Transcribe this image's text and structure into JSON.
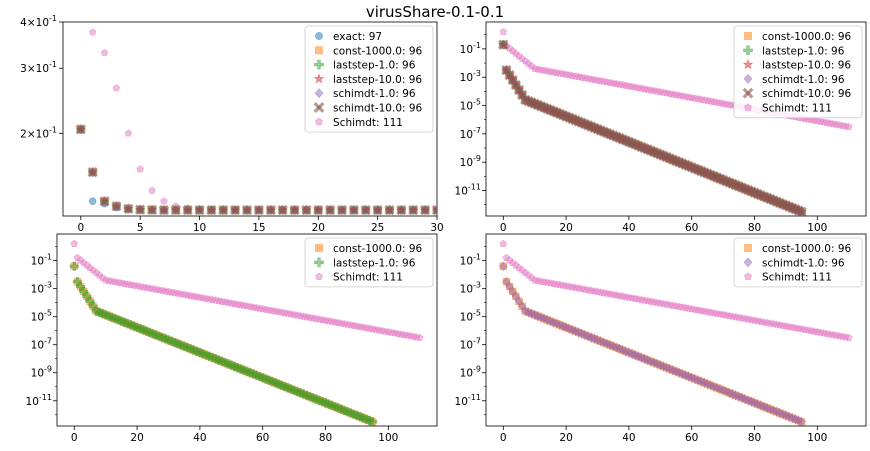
{
  "figure": {
    "title": "virusShare-0.1-0.1"
  },
  "colors": {
    "exact": "#1f77b4",
    "const-1000.0": "#ff7f0e",
    "laststep-1.0": "#2ca02c",
    "laststep-10.0": "#d62728",
    "schimdt-1.0": "#9467bd",
    "schimdt-10.0": "#8c564b",
    "Schimdt": "#e377c2"
  },
  "chart_data": [
    {
      "type": "scatter",
      "title": "",
      "xlabel": "",
      "ylabel": "",
      "yscale": "log",
      "xlim": [
        -1.5,
        30
      ],
      "ylim": [
        0.1195,
        0.4
      ],
      "xticks": [
        0,
        5,
        10,
        15,
        20,
        25,
        30
      ],
      "yticks": [
        {
          "value": 0.2,
          "label": "2 × 10^-1"
        },
        {
          "value": 0.3,
          "label": "3 × 10^-1"
        },
        {
          "value": 0.4,
          "label": "4 × 10^-1"
        }
      ],
      "legend_position": "top-right",
      "legend": [
        "exact: 97",
        "const-1000.0: 96",
        "laststep-1.0: 96",
        "laststep-10.0: 96",
        "schimdt-1.0: 96",
        "schimdt-10.0: 96",
        "Schimdt: 111"
      ],
      "series": [
        {
          "name": "exact: 97",
          "key": "exact",
          "marker": "circle",
          "points": [
            [
              0,
              0.205
            ],
            [
              1,
              0.131
            ],
            [
              2,
              0.129
            ],
            [
              3,
              0.126
            ],
            [
              4,
              0.1245
            ],
            [
              5,
              0.1243
            ],
            [
              6,
              0.1241
            ],
            [
              7,
              0.124
            ],
            [
              8,
              0.124
            ],
            [
              9,
              0.124
            ],
            [
              10,
              0.124
            ],
            [
              11,
              0.124
            ],
            [
              12,
              0.124
            ],
            [
              13,
              0.124
            ],
            [
              14,
              0.124
            ],
            [
              15,
              0.124
            ],
            [
              16,
              0.124
            ],
            [
              17,
              0.124
            ],
            [
              18,
              0.124
            ],
            [
              19,
              0.124
            ],
            [
              20,
              0.124
            ],
            [
              21,
              0.124
            ],
            [
              22,
              0.124
            ],
            [
              23,
              0.124
            ],
            [
              24,
              0.124
            ],
            [
              25,
              0.124
            ],
            [
              26,
              0.124
            ],
            [
              27,
              0.124
            ],
            [
              28,
              0.124
            ],
            [
              29,
              0.124
            ],
            [
              30,
              0.124
            ]
          ]
        },
        {
          "name": "const-1000.0: 96",
          "key": "const-1000.0",
          "marker": "square",
          "points": [
            [
              0,
              0.205
            ],
            [
              1,
              0.157
            ],
            [
              2,
              0.131
            ],
            [
              3,
              0.127
            ],
            [
              4,
              0.125
            ],
            [
              5,
              0.1243
            ],
            [
              6,
              0.1241
            ],
            [
              7,
              0.124
            ],
            [
              8,
              0.124
            ],
            [
              9,
              0.124
            ],
            [
              10,
              0.124
            ],
            [
              11,
              0.124
            ],
            [
              12,
              0.124
            ],
            [
              13,
              0.124
            ],
            [
              14,
              0.124
            ],
            [
              15,
              0.124
            ],
            [
              16,
              0.124
            ],
            [
              17,
              0.124
            ],
            [
              18,
              0.124
            ],
            [
              19,
              0.124
            ],
            [
              20,
              0.124
            ],
            [
              21,
              0.124
            ],
            [
              22,
              0.124
            ],
            [
              23,
              0.124
            ],
            [
              24,
              0.124
            ],
            [
              25,
              0.124
            ],
            [
              26,
              0.124
            ],
            [
              27,
              0.124
            ],
            [
              28,
              0.124
            ],
            [
              29,
              0.124
            ],
            [
              30,
              0.124
            ]
          ]
        },
        {
          "name": "Schimdt: 111",
          "key": "Schimdt",
          "marker": "pentagon",
          "points": [
            [
              0,
              0.205
            ],
            [
              1,
              0.375
            ],
            [
              2,
              0.33
            ],
            [
              3,
              0.265
            ],
            [
              4,
              0.2
            ],
            [
              5,
              0.16
            ],
            [
              6,
              0.14
            ],
            [
              7,
              0.131
            ],
            [
              8,
              0.127
            ],
            [
              9,
              0.1255
            ],
            [
              10,
              0.1248
            ],
            [
              11,
              0.1244
            ],
            [
              12,
              0.1242
            ],
            [
              13,
              0.1241
            ],
            [
              14,
              0.124
            ],
            [
              15,
              0.124
            ],
            [
              16,
              0.124
            ],
            [
              17,
              0.124
            ],
            [
              18,
              0.124
            ],
            [
              19,
              0.124
            ],
            [
              20,
              0.124
            ],
            [
              21,
              0.124
            ],
            [
              22,
              0.124
            ],
            [
              23,
              0.124
            ],
            [
              24,
              0.124
            ],
            [
              25,
              0.124
            ],
            [
              26,
              0.124
            ],
            [
              27,
              0.124
            ],
            [
              28,
              0.124
            ],
            [
              29,
              0.124
            ],
            [
              30,
              0.124
            ]
          ]
        }
      ],
      "overlay_series_same_as_const": [
        "laststep-1.0",
        "laststep-10.0",
        "schimdt-1.0",
        "schimdt-10.0"
      ]
    },
    {
      "type": "scatter",
      "title": "",
      "xlabel": "",
      "ylabel": "",
      "yscale": "log",
      "xlim": [
        -5.5,
        115.5
      ],
      "ylim_exp": [
        -12.8,
        0.9
      ],
      "xticks": [
        0,
        20,
        40,
        60,
        80,
        100
      ],
      "yticks_exp": [
        -11,
        -9,
        -7,
        -5,
        -3,
        -1
      ],
      "legend_position": "top-right",
      "legend": [
        "const-1000.0: 96",
        "laststep-1.0: 96",
        "laststep-10.0: 96",
        "schimdt-1.0: 96",
        "schimdt-10.0: 96",
        "Schimdt: 111"
      ],
      "series_keys": [
        "const-1000.0",
        "laststep-1.0",
        "laststep-10.0",
        "schimdt-1.0",
        "schimdt-10.0"
      ],
      "fast_curve_log10": {
        "start": -0.7,
        "x1": 1,
        "v1": -2.5,
        "x2": 7,
        "v2": -4.6,
        "end_x": 95,
        "end_v": -12.5
      },
      "slow_curve_log10": {
        "start": 0.2,
        "x1": 1,
        "v1": -0.8,
        "x2": 10,
        "v2": -2.4,
        "end_x": 110,
        "end_v": -6.5
      }
    },
    {
      "type": "scatter",
      "title": "",
      "xlabel": "",
      "ylabel": "",
      "yscale": "log",
      "xlim": [
        -5.5,
        115.5
      ],
      "ylim_exp": [
        -12.8,
        0.9
      ],
      "xticks": [
        0,
        20,
        40,
        60,
        80,
        100
      ],
      "yticks_exp": [
        -11,
        -9,
        -7,
        -5,
        -3,
        -1
      ],
      "legend_position": "top-right",
      "legend": [
        "const-1000.0: 96",
        "laststep-1.0: 96",
        "Schimdt: 111"
      ],
      "series_keys": [
        "const-1000.0",
        "laststep-1.0"
      ],
      "fast_curve_log10": {
        "start": -1.4,
        "x1": 1,
        "v1": -2.5,
        "x2": 7,
        "v2": -4.6,
        "end_x": 95,
        "end_v": -12.5
      },
      "slow_curve_log10": {
        "start": 0.2,
        "x1": 1,
        "v1": -0.8,
        "x2": 10,
        "v2": -2.4,
        "end_x": 110,
        "end_v": -6.5
      }
    },
    {
      "type": "scatter",
      "title": "",
      "xlabel": "",
      "ylabel": "",
      "yscale": "log",
      "xlim": [
        -5.5,
        115.5
      ],
      "ylim_exp": [
        -12.8,
        0.9
      ],
      "xticks": [
        0,
        20,
        40,
        60,
        80,
        100
      ],
      "yticks_exp": [
        -11,
        -9,
        -7,
        -5,
        -3,
        -1
      ],
      "legend_position": "top-right",
      "legend": [
        "const-1000.0: 96",
        "schimdt-1.0: 96",
        "Schimdt: 111"
      ],
      "series_keys": [
        "const-1000.0",
        "schimdt-1.0"
      ],
      "fast_curve_log10": {
        "start": -1.4,
        "x1": 1,
        "v1": -2.5,
        "x2": 7,
        "v2": -4.6,
        "end_x": 95,
        "end_v": -12.5
      },
      "slow_curve_log10": {
        "start": 0.2,
        "x1": 1,
        "v1": -0.8,
        "x2": 10,
        "v2": -2.4,
        "end_x": 110,
        "end_v": -6.5
      }
    }
  ]
}
